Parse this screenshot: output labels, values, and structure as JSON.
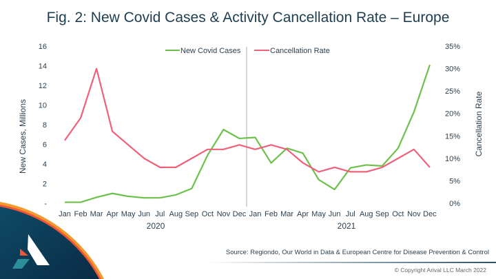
{
  "title": "Fig. 2: New Covid Cases & Activity Cancellation Rate – Europe",
  "source": "Source: Regiondo, Our World in Data & European Centre for Disease Prevention & Control",
  "copyright": "© Copyright Arival LLC March 2022",
  "chart_data": {
    "type": "line",
    "title": "Fig. 2: New Covid Cases & Activity Cancellation Rate – Europe",
    "categories": [
      "Jan",
      "Feb",
      "Mar",
      "Apr",
      "May",
      "Jun",
      "Jul",
      "Aug",
      "Sep",
      "Oct",
      "Nov",
      "Dec",
      "Jan",
      "Feb",
      "Mar",
      "Apr",
      "May",
      "Jun",
      "Jul",
      "Aug",
      "Sep",
      "Oct",
      "Nov",
      "Dec"
    ],
    "year_labels": [
      "2020",
      "2021"
    ],
    "ylabel": "New Cases, Millions",
    "y2label": "Cancellation Rate",
    "ylim": [
      0,
      16
    ],
    "y2lim": [
      0,
      35
    ],
    "yticks": [
      "-",
      "2",
      "4",
      "6",
      "8",
      "10",
      "12",
      "14",
      "16"
    ],
    "y2ticks": [
      "0%",
      "5%",
      "10%",
      "15%",
      "20%",
      "25%",
      "30%",
      "35%"
    ],
    "legend": "top-center",
    "grid": false,
    "series": [
      {
        "name": "New Covid Cases",
        "axis": "left",
        "color": "#6cc04a",
        "values": [
          0.1,
          0.1,
          0.6,
          1.0,
          0.7,
          0.55,
          0.55,
          0.85,
          1.5,
          4.9,
          7.5,
          6.6,
          6.7,
          4.1,
          5.6,
          5.1,
          2.4,
          1.4,
          3.6,
          3.9,
          3.8,
          5.6,
          9.3,
          14.1
        ]
      },
      {
        "name": "Cancellation Rate",
        "axis": "right",
        "color": "#f0607a",
        "values": [
          14,
          19,
          30,
          16,
          13,
          10,
          8,
          8,
          10,
          12,
          12,
          13,
          12,
          13,
          12,
          9,
          7,
          8,
          7,
          7,
          8,
          10,
          12,
          8
        ]
      }
    ]
  }
}
